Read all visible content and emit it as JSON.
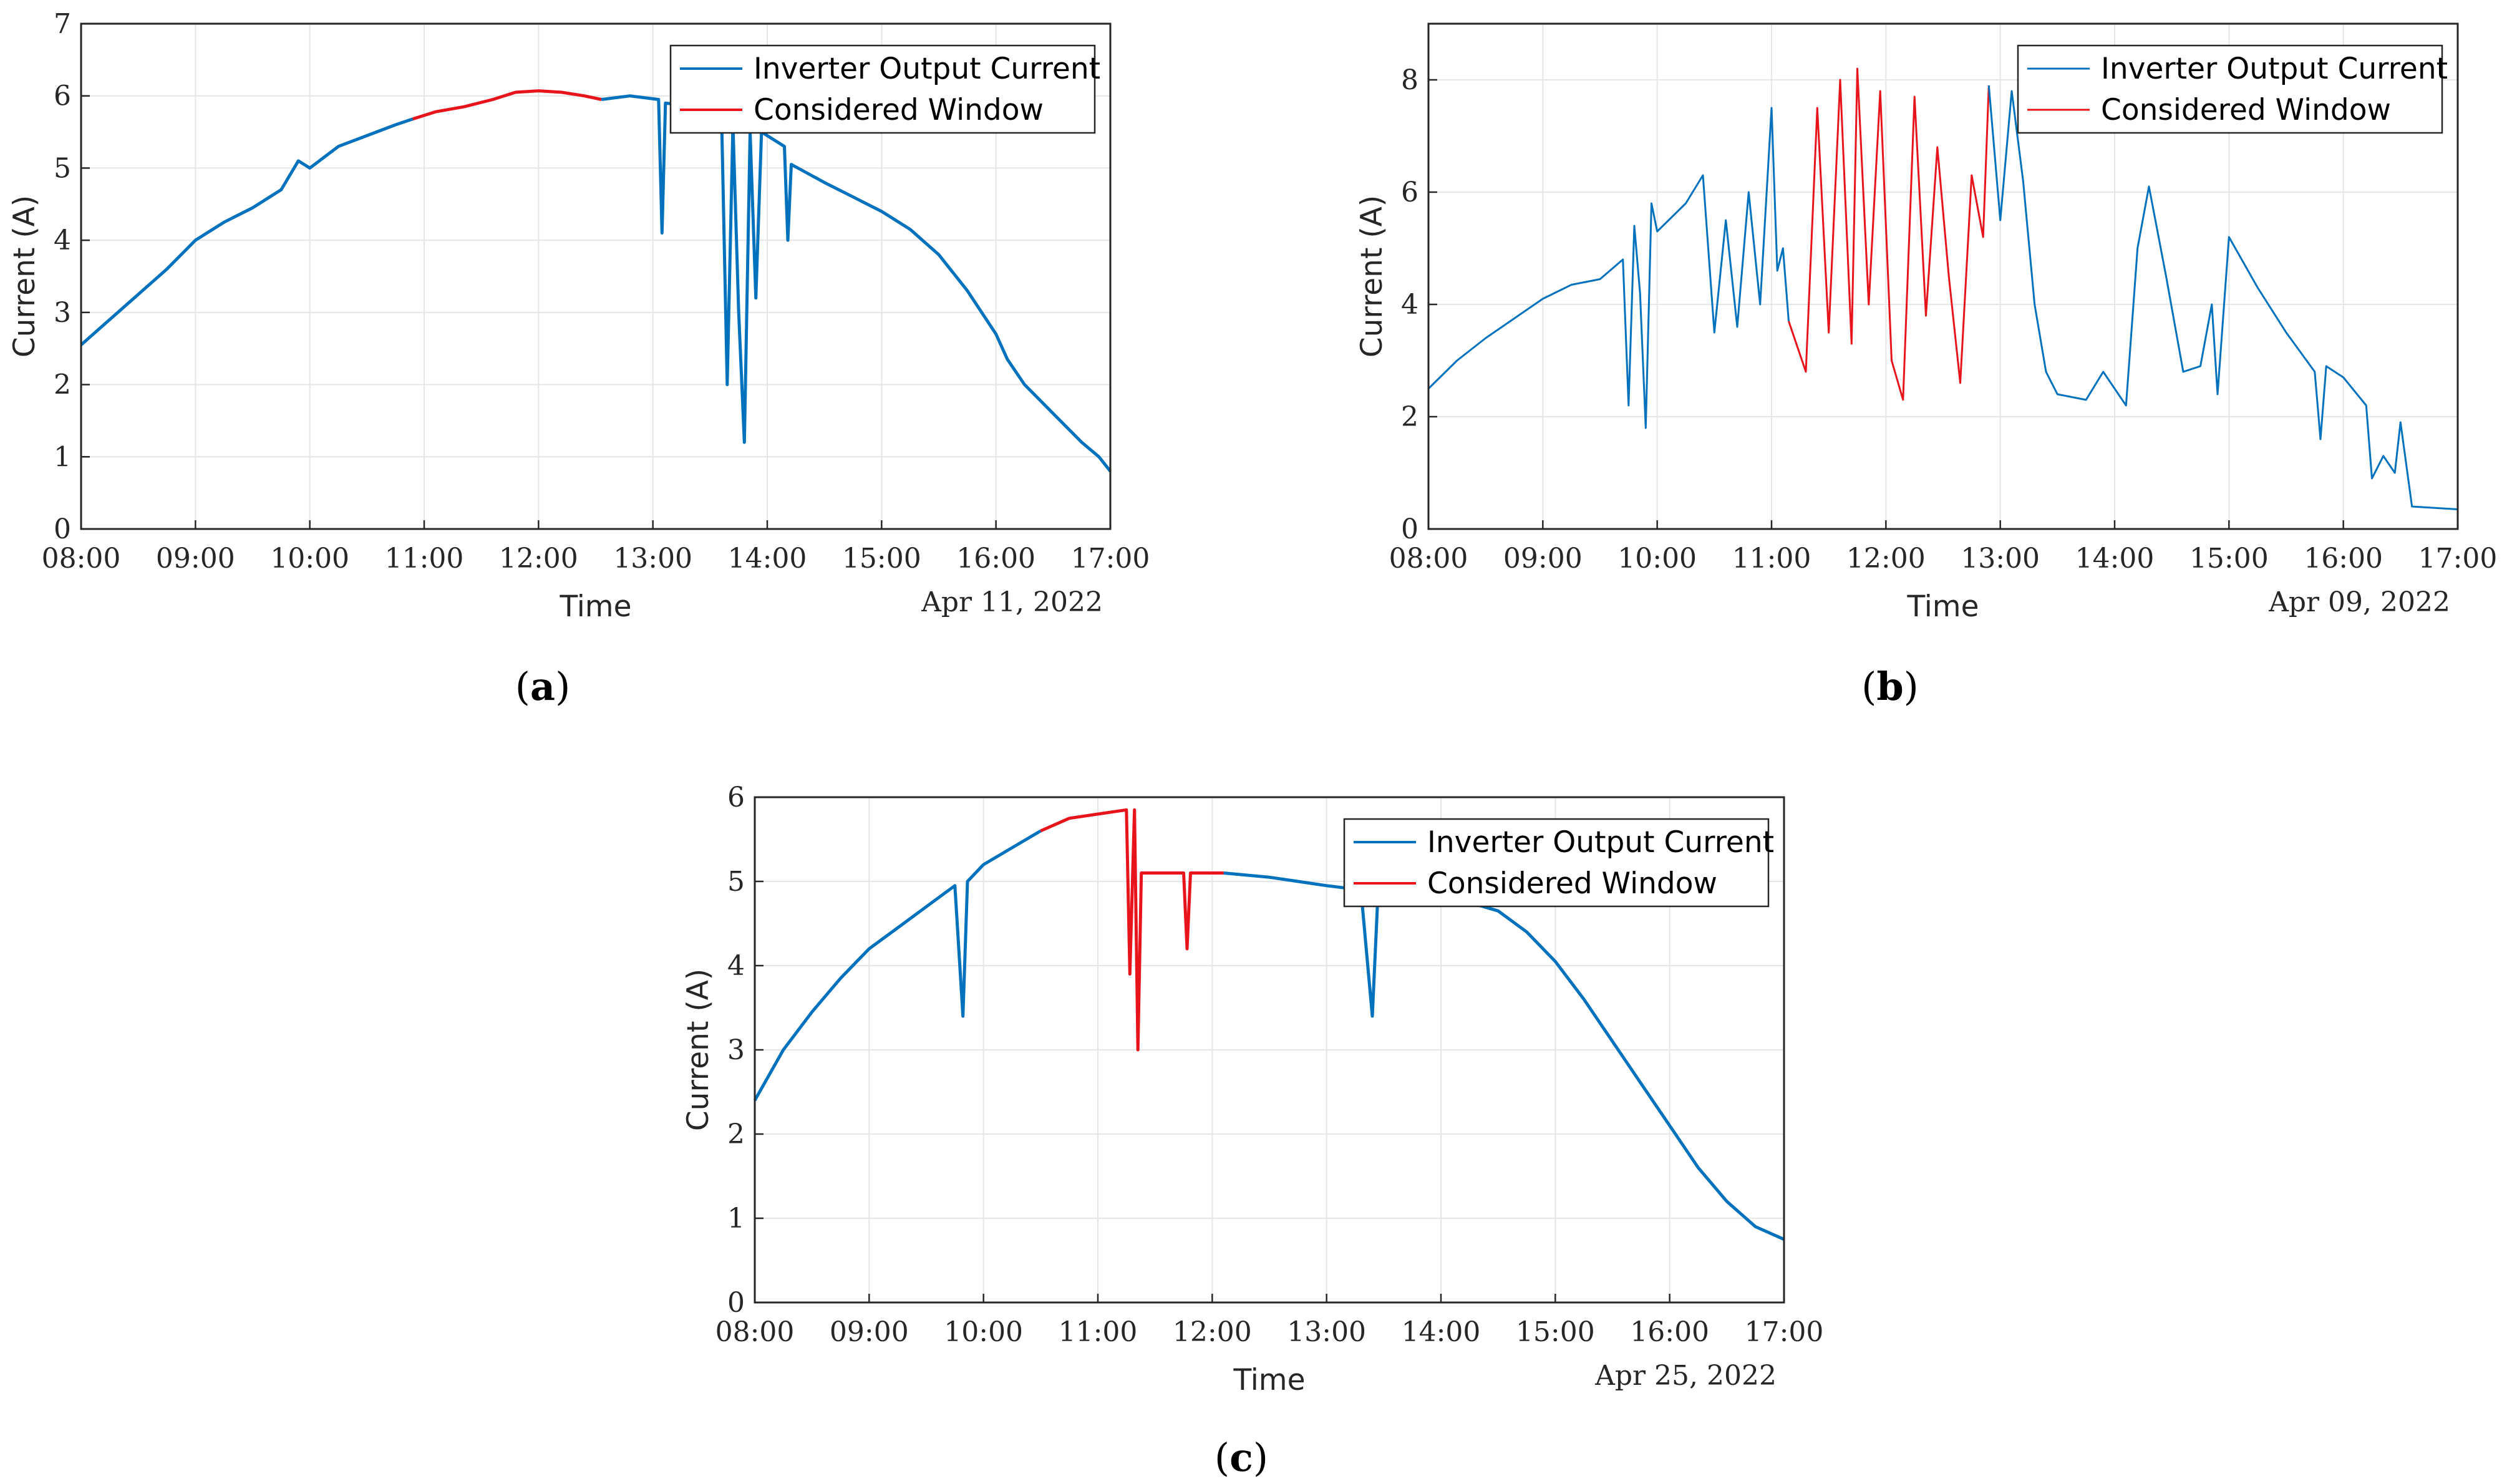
{
  "colors": {
    "inverter": "#0072BD",
    "window": "#E8141B"
  },
  "chart_data": [
    {
      "type": "line",
      "panel": "a",
      "xlabel": "Time",
      "ylabel": "Current (A)",
      "date": "Apr 11, 2022",
      "xlim": [
        8,
        17
      ],
      "ylim": [
        0,
        7
      ],
      "x_ticks": [
        8,
        9,
        10,
        11,
        12,
        13,
        14,
        15,
        16,
        17
      ],
      "x_tick_labels": [
        "08:00",
        "09:00",
        "10:00",
        "11:00",
        "12:00",
        "13:00",
        "14:00",
        "15:00",
        "16:00",
        "17:00"
      ],
      "y_ticks": [
        0,
        1,
        2,
        3,
        4,
        5,
        6,
        7
      ],
      "y_tick_labels": [
        "0",
        "1",
        "2",
        "3",
        "4",
        "5",
        "6",
        "7"
      ],
      "legend": [
        "Inverter Output Current",
        "Considered Window"
      ],
      "legend_position": "top-right",
      "grid": true,
      "series": [
        {
          "name": "Inverter Output Current",
          "points": [
            [
              8.0,
              2.55
            ],
            [
              8.25,
              2.9
            ],
            [
              8.5,
              3.25
            ],
            [
              8.75,
              3.6
            ],
            [
              9.0,
              4.0
            ],
            [
              9.25,
              4.25
            ],
            [
              9.5,
              4.45
            ],
            [
              9.75,
              4.7
            ],
            [
              9.9,
              5.1
            ],
            [
              10.0,
              5.0
            ],
            [
              10.25,
              5.3
            ],
            [
              10.5,
              5.45
            ],
            [
              10.75,
              5.6
            ],
            [
              10.9,
              5.68
            ]
          ]
        },
        {
          "name": "Considered Window",
          "points": [
            [
              10.9,
              5.68
            ],
            [
              11.1,
              5.78
            ],
            [
              11.35,
              5.85
            ],
            [
              11.6,
              5.95
            ],
            [
              11.8,
              6.05
            ],
            [
              12.0,
              6.07
            ],
            [
              12.2,
              6.05
            ],
            [
              12.4,
              6.0
            ],
            [
              12.55,
              5.95
            ]
          ]
        },
        {
          "name": "Inverter Output Current",
          "points": [
            [
              12.55,
              5.95
            ],
            [
              12.8,
              6.0
            ],
            [
              13.05,
              5.95
            ],
            [
              13.08,
              4.1
            ],
            [
              13.11,
              5.9
            ],
            [
              13.4,
              5.85
            ],
            [
              13.6,
              5.75
            ],
            [
              13.65,
              2.0
            ],
            [
              13.7,
              5.6
            ],
            [
              13.75,
              3.0
            ],
            [
              13.8,
              1.2
            ],
            [
              13.85,
              5.5
            ],
            [
              13.9,
              3.2
            ],
            [
              13.95,
              5.5
            ],
            [
              14.15,
              5.3
            ],
            [
              14.18,
              4.0
            ],
            [
              14.21,
              5.05
            ],
            [
              14.5,
              4.8
            ],
            [
              14.75,
              4.6
            ],
            [
              15.0,
              4.4
            ],
            [
              15.25,
              4.15
            ],
            [
              15.5,
              3.8
            ],
            [
              15.75,
              3.3
            ],
            [
              16.0,
              2.7
            ],
            [
              16.1,
              2.35
            ],
            [
              16.25,
              2.0
            ],
            [
              16.5,
              1.6
            ],
            [
              16.75,
              1.2
            ],
            [
              16.9,
              1.0
            ],
            [
              17.0,
              0.8
            ]
          ]
        }
      ]
    },
    {
      "type": "line",
      "panel": "b",
      "xlabel": "Time",
      "ylabel": "Current (A)",
      "date": "Apr 09, 2022",
      "xlim": [
        8,
        17
      ],
      "ylim": [
        0,
        9
      ],
      "x_ticks": [
        8,
        9,
        10,
        11,
        12,
        13,
        14,
        15,
        16,
        17
      ],
      "x_tick_labels": [
        "08:00",
        "09:00",
        "10:00",
        "11:00",
        "12:00",
        "13:00",
        "14:00",
        "15:00",
        "16:00",
        "17:00"
      ],
      "y_ticks": [
        0,
        2,
        4,
        6,
        8
      ],
      "y_tick_labels": [
        "0",
        "2",
        "4",
        "6",
        "8"
      ],
      "legend": [
        "Inverter Output Current",
        "Considered Window"
      ],
      "legend_position": "top-right",
      "grid": true,
      "series": [
        {
          "name": "Inverter Output Current",
          "points": [
            [
              8.0,
              2.5
            ],
            [
              8.25,
              3.0
            ],
            [
              8.5,
              3.4
            ],
            [
              8.75,
              3.75
            ],
            [
              9.0,
              4.1
            ],
            [
              9.25,
              4.35
            ],
            [
              9.5,
              4.45
            ],
            [
              9.7,
              4.8
            ],
            [
              9.75,
              2.2
            ],
            [
              9.8,
              5.4
            ],
            [
              9.85,
              4.2
            ],
            [
              9.9,
              1.8
            ],
            [
              9.95,
              5.8
            ],
            [
              10.0,
              5.3
            ],
            [
              10.25,
              5.8
            ],
            [
              10.4,
              6.3
            ],
            [
              10.5,
              3.5
            ],
            [
              10.6,
              5.5
            ],
            [
              10.7,
              3.6
            ],
            [
              10.8,
              6.0
            ],
            [
              10.9,
              4.0
            ],
            [
              11.0,
              7.5
            ],
            [
              11.05,
              4.6
            ],
            [
              11.1,
              5.0
            ],
            [
              11.15,
              3.7
            ]
          ]
        },
        {
          "name": "Considered Window",
          "points": [
            [
              11.15,
              3.7
            ],
            [
              11.3,
              2.8
            ],
            [
              11.4,
              7.5
            ],
            [
              11.5,
              3.5
            ],
            [
              11.6,
              8.0
            ],
            [
              11.7,
              3.3
            ],
            [
              11.75,
              8.2
            ],
            [
              11.85,
              4.0
            ],
            [
              11.95,
              7.8
            ],
            [
              12.05,
              3.0
            ],
            [
              12.15,
              2.3
            ],
            [
              12.25,
              7.7
            ],
            [
              12.35,
              3.8
            ],
            [
              12.45,
              6.8
            ],
            [
              12.55,
              4.5
            ],
            [
              12.65,
              2.6
            ],
            [
              12.75,
              6.3
            ],
            [
              12.85,
              5.2
            ],
            [
              12.9,
              7.9
            ]
          ]
        },
        {
          "name": "Inverter Output Current",
          "points": [
            [
              12.9,
              7.9
            ],
            [
              13.0,
              5.5
            ],
            [
              13.1,
              7.8
            ],
            [
              13.2,
              6.2
            ],
            [
              13.3,
              4.0
            ],
            [
              13.4,
              2.8
            ],
            [
              13.5,
              2.4
            ],
            [
              13.75,
              2.3
            ],
            [
              13.9,
              2.8
            ],
            [
              14.1,
              2.2
            ],
            [
              14.2,
              5.0
            ],
            [
              14.3,
              6.1
            ],
            [
              14.45,
              4.5
            ],
            [
              14.6,
              2.8
            ],
            [
              14.75,
              2.9
            ],
            [
              14.85,
              4.0
            ],
            [
              14.9,
              2.4
            ],
            [
              15.0,
              5.2
            ],
            [
              15.25,
              4.3
            ],
            [
              15.5,
              3.5
            ],
            [
              15.75,
              2.8
            ],
            [
              15.8,
              1.6
            ],
            [
              15.85,
              2.9
            ],
            [
              16.0,
              2.7
            ],
            [
              16.2,
              2.2
            ],
            [
              16.25,
              0.9
            ],
            [
              16.35,
              1.3
            ],
            [
              16.45,
              1.0
            ],
            [
              16.5,
              1.9
            ],
            [
              16.6,
              0.4
            ],
            [
              17.0,
              0.35
            ]
          ]
        }
      ]
    },
    {
      "type": "line",
      "panel": "c",
      "xlabel": "Time",
      "ylabel": "Current (A)",
      "date": "Apr 25, 2022",
      "xlim": [
        8,
        17
      ],
      "ylim": [
        0,
        6
      ],
      "x_ticks": [
        8,
        9,
        10,
        11,
        12,
        13,
        14,
        15,
        16,
        17
      ],
      "x_tick_labels": [
        "08:00",
        "09:00",
        "10:00",
        "11:00",
        "12:00",
        "13:00",
        "14:00",
        "15:00",
        "16:00",
        "17:00"
      ],
      "y_ticks": [
        0,
        1,
        2,
        3,
        4,
        5,
        6
      ],
      "y_tick_labels": [
        "0",
        "1",
        "2",
        "3",
        "4",
        "5",
        "6"
      ],
      "legend": [
        "Inverter Output Current",
        "Considered Window"
      ],
      "legend_position": "top-right",
      "grid": true,
      "series": [
        {
          "name": "Inverter Output Current",
          "points": [
            [
              8.0,
              2.4
            ],
            [
              8.25,
              3.0
            ],
            [
              8.5,
              3.45
            ],
            [
              8.75,
              3.85
            ],
            [
              9.0,
              4.2
            ],
            [
              9.25,
              4.45
            ],
            [
              9.5,
              4.7
            ],
            [
              9.75,
              4.95
            ],
            [
              9.82,
              3.4
            ],
            [
              9.86,
              5.0
            ],
            [
              10.0,
              5.2
            ],
            [
              10.25,
              5.4
            ],
            [
              10.5,
              5.6
            ]
          ]
        },
        {
          "name": "Considered Window",
          "points": [
            [
              10.5,
              5.6
            ],
            [
              10.75,
              5.75
            ],
            [
              11.0,
              5.8
            ],
            [
              11.25,
              5.85
            ],
            [
              11.28,
              3.9
            ],
            [
              11.32,
              5.85
            ],
            [
              11.35,
              3.0
            ],
            [
              11.38,
              5.1
            ],
            [
              11.75,
              5.1
            ],
            [
              11.78,
              4.2
            ],
            [
              11.81,
              5.1
            ],
            [
              12.1,
              5.1
            ]
          ]
        },
        {
          "name": "Inverter Output Current",
          "points": [
            [
              12.1,
              5.1
            ],
            [
              12.5,
              5.05
            ],
            [
              12.75,
              5.0
            ],
            [
              13.0,
              4.95
            ],
            [
              13.3,
              4.9
            ],
            [
              13.4,
              3.4
            ],
            [
              13.45,
              4.88
            ],
            [
              13.75,
              4.85
            ],
            [
              14.0,
              4.8
            ],
            [
              14.25,
              4.75
            ],
            [
              14.5,
              4.65
            ],
            [
              14.75,
              4.4
            ],
            [
              15.0,
              4.05
            ],
            [
              15.25,
              3.6
            ],
            [
              15.5,
              3.1
            ],
            [
              15.75,
              2.6
            ],
            [
              16.0,
              2.1
            ],
            [
              16.25,
              1.6
            ],
            [
              16.5,
              1.2
            ],
            [
              16.75,
              0.9
            ],
            [
              17.0,
              0.75
            ]
          ]
        }
      ]
    }
  ],
  "panel_labels": [
    "a",
    "b",
    "c"
  ]
}
